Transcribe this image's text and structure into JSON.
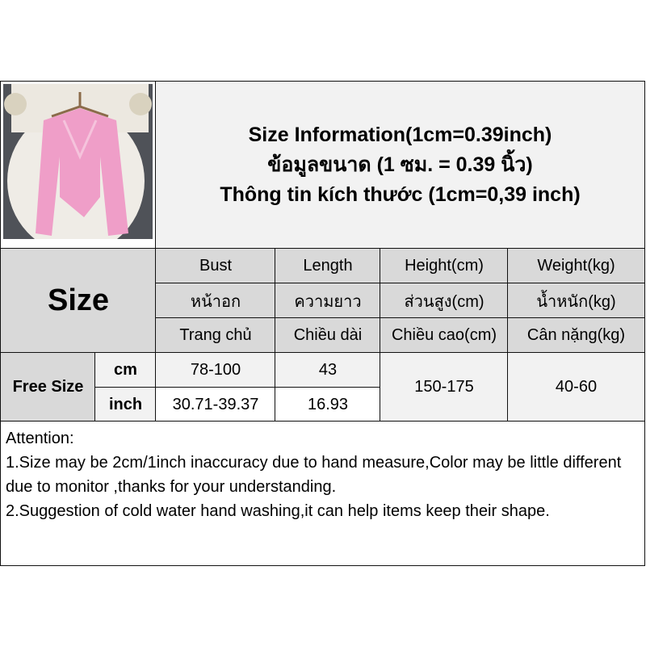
{
  "title": {
    "line1": "Size Information(1cm=0.39inch)",
    "line2": "ข้อมูลขนาด (1 ซม. = 0.39 นิ้ว)",
    "line3": "Thông tin kích thước (1cm=0,39 inch)"
  },
  "header": {
    "size": "Size",
    "columns": [
      {
        "en": "Bust",
        "th": "หน้าอก",
        "vi": "Trang chủ"
      },
      {
        "en": "Length",
        "th": "ความยาว",
        "vi": "Chiều dài"
      },
      {
        "en": "Height(cm)",
        "th": "ส่วนสูง(cm)",
        "vi": "Chiều cao(cm)"
      },
      {
        "en": "Weight(kg)",
        "th": "น้ำหนัก(kg)",
        "vi": "Cân nặng(kg)"
      }
    ]
  },
  "rows": {
    "size": "Free Size",
    "cm": {
      "unit": "cm",
      "bust": "78-100",
      "length": "43"
    },
    "inch": {
      "unit": "inch",
      "bust": "30.71-39.37",
      "length": "16.93"
    },
    "height": "150-175",
    "weight": "40-60"
  },
  "attention": {
    "heading": "Attention:",
    "line1": "1.Size may be 2cm/1inch inaccuracy due to hand measure,Color may be little different due to monitor ,thanks for your understanding.",
    "line2": "2.Suggestion of cold water hand washing,it can help items keep their shape."
  }
}
